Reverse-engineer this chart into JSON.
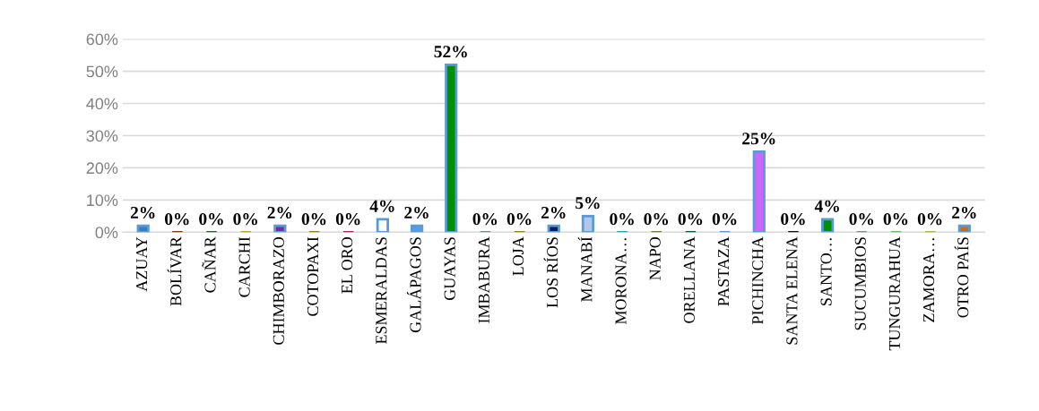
{
  "chart_data": {
    "type": "bar",
    "categories": [
      "AZUAY",
      "BOLÍVAR",
      "CAÑAR",
      "CARCHI",
      "CHIMBORAZO",
      "COTOPAXI",
      "EL ORO",
      "ESMERALDAS",
      "GALÁPAGOS",
      "GUAYAS",
      "IMBABURA",
      "LOJA",
      "LOS RÍOS",
      "MANABÍ",
      "MORONA…",
      "NAPO",
      "ORELLANA",
      "PASTAZA",
      "PICHINCHA",
      "SANTA ELENA",
      "SANTO…",
      "SUCUMBIOS",
      "TUNGURAHUA",
      "ZAMORA…",
      "OTRO PAÍS"
    ],
    "values": [
      2,
      0,
      0,
      0,
      2,
      0,
      0,
      4,
      2,
      52,
      0,
      0,
      2,
      5,
      0,
      0,
      0,
      0,
      25,
      0,
      4,
      0,
      0,
      0,
      2
    ],
    "value_labels": [
      "2%",
      "0%",
      "0%",
      "0%",
      "2%",
      "0%",
      "0%",
      "4%",
      "2%",
      "52%",
      "0%",
      "0%",
      "2%",
      "5%",
      "0%",
      "0%",
      "0%",
      "0%",
      "25%",
      "0%",
      "4%",
      "0%",
      "0%",
      "0%",
      "2%"
    ],
    "colors": [
      "#3a7cc0",
      "#7b3a10",
      "#2f5f3a",
      "#c8a020",
      "#7030a0",
      "#a08020",
      "#c0205a",
      "#ffffff",
      "#5a9ae8",
      "#009000",
      "#8090a0",
      "#a08020",
      "#002060",
      "#b4c7e7",
      "#20b0b0",
      "#808040",
      "#006030",
      "#5b9bd5",
      "#cc66ff",
      "#101010",
      "#009000",
      "#8090a0",
      "#70c070",
      "#a0c040",
      "#d06a10"
    ],
    "ylim": [
      0,
      60
    ],
    "yticks": [
      {
        "value": 0,
        "label": "0%"
      },
      {
        "value": 10,
        "label": "10%"
      },
      {
        "value": 20,
        "label": "20%"
      },
      {
        "value": 30,
        "label": "30%"
      },
      {
        "value": 40,
        "label": "40%"
      },
      {
        "value": 50,
        "label": "50%"
      },
      {
        "value": 60,
        "label": "60%"
      }
    ],
    "grid": "y",
    "legend": false
  }
}
